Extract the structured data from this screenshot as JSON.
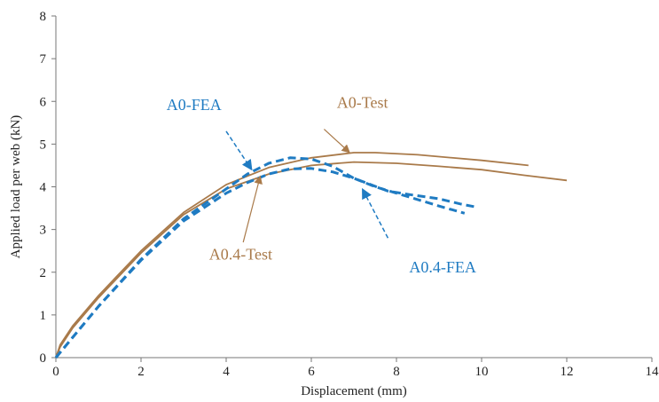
{
  "chart_data": {
    "type": "line",
    "title": "",
    "xlabel": "Displacement (mm)",
    "ylabel": "Applied load per web (kN)",
    "xlim": [
      0,
      14
    ],
    "ylim": [
      0,
      8
    ],
    "xticks": [
      0,
      2,
      4,
      6,
      8,
      10,
      12,
      14
    ],
    "yticks": [
      0,
      1,
      2,
      3,
      4,
      5,
      6,
      7,
      8
    ],
    "grid": false,
    "legend": "none",
    "colors": {
      "test": "#a97a4a",
      "fea": "#1f7bc2"
    },
    "series": [
      {
        "name": "A0-Test",
        "style": "solid",
        "color": "#a97a4a",
        "points": [
          [
            0,
            0
          ],
          [
            0.1,
            0.3
          ],
          [
            0.4,
            0.75
          ],
          [
            1,
            1.45
          ],
          [
            2,
            2.5
          ],
          [
            3,
            3.4
          ],
          [
            4,
            4.05
          ],
          [
            5,
            4.45
          ],
          [
            6,
            4.68
          ],
          [
            7,
            4.8
          ],
          [
            7.5,
            4.8
          ],
          [
            8.5,
            4.75
          ],
          [
            10,
            4.62
          ],
          [
            11.1,
            4.5
          ]
        ]
      },
      {
        "name": "A0.4-Test",
        "style": "solid",
        "color": "#a97a4a",
        "points": [
          [
            0,
            0
          ],
          [
            0.1,
            0.25
          ],
          [
            0.4,
            0.7
          ],
          [
            1,
            1.4
          ],
          [
            2,
            2.45
          ],
          [
            3,
            3.35
          ],
          [
            4,
            3.95
          ],
          [
            5,
            4.3
          ],
          [
            6,
            4.5
          ],
          [
            7,
            4.58
          ],
          [
            8,
            4.55
          ],
          [
            9,
            4.48
          ],
          [
            10,
            4.4
          ],
          [
            11,
            4.27
          ],
          [
            12,
            4.15
          ]
        ]
      },
      {
        "name": "A0-FEA",
        "style": "dashed",
        "color": "#1f7bc2",
        "points": [
          [
            0,
            0
          ],
          [
            0.5,
            0.6
          ],
          [
            1,
            1.2
          ],
          [
            2,
            2.3
          ],
          [
            3,
            3.25
          ],
          [
            4,
            3.95
          ],
          [
            4.5,
            4.3
          ],
          [
            5,
            4.55
          ],
          [
            5.5,
            4.68
          ],
          [
            6,
            4.65
          ],
          [
            6.5,
            4.48
          ],
          [
            7,
            4.2
          ],
          [
            7.8,
            3.9
          ],
          [
            8.3,
            3.82
          ],
          [
            9,
            3.72
          ],
          [
            9.5,
            3.6
          ],
          [
            9.9,
            3.52
          ]
        ]
      },
      {
        "name": "A0.4-FEA",
        "style": "dashed",
        "color": "#1f7bc2",
        "points": [
          [
            0,
            0
          ],
          [
            0.5,
            0.6
          ],
          [
            1,
            1.2
          ],
          [
            2,
            2.28
          ],
          [
            3,
            3.2
          ],
          [
            4,
            3.85
          ],
          [
            4.5,
            4.1
          ],
          [
            5,
            4.3
          ],
          [
            5.5,
            4.42
          ],
          [
            6,
            4.43
          ],
          [
            6.5,
            4.35
          ],
          [
            7,
            4.2
          ],
          [
            7.5,
            4.0
          ],
          [
            8,
            3.85
          ],
          [
            8.5,
            3.7
          ],
          [
            9,
            3.55
          ],
          [
            9.6,
            3.38
          ]
        ]
      }
    ],
    "annotations": [
      {
        "text": "A0-FEA",
        "color": "#1f7bc2",
        "label_at": [
          2.6,
          5.8
        ],
        "arrow_from": [
          4.0,
          5.3
        ],
        "arrow_to": [
          4.6,
          4.4
        ],
        "dashed": true
      },
      {
        "text": "A0-Test",
        "color": "#a97a4a",
        "label_at": [
          6.6,
          5.85
        ],
        "arrow_from": [
          6.3,
          5.35
        ],
        "arrow_to": [
          6.9,
          4.8
        ],
        "dashed": false
      },
      {
        "text": "A0.4-Test",
        "color": "#a97a4a",
        "label_at": [
          3.6,
          2.3
        ],
        "arrow_from": [
          4.4,
          2.7
        ],
        "arrow_to": [
          4.8,
          4.25
        ],
        "dashed": false
      },
      {
        "text": "A0.4-FEA",
        "color": "#1f7bc2",
        "label_at": [
          8.3,
          2.0
        ],
        "arrow_from": [
          7.8,
          2.8
        ],
        "arrow_to": [
          7.2,
          3.95
        ],
        "dashed": true
      }
    ]
  }
}
